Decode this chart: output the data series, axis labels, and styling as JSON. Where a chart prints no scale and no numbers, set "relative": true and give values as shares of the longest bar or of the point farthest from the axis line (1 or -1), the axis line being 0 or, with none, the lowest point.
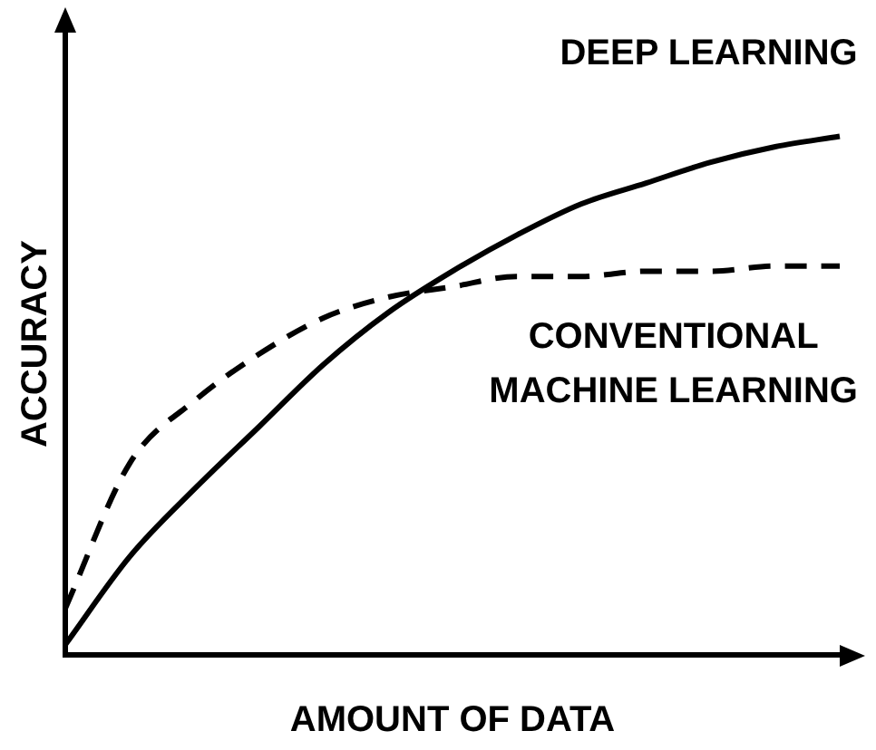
{
  "chart_data": {
    "type": "line",
    "relative": true,
    "xlabel": "AMOUNT OF DATA",
    "ylabel": "ACCURACY",
    "categories": [
      null,
      null,
      null,
      null,
      null,
      null,
      null,
      null,
      null,
      null,
      null,
      null,
      null
    ],
    "series": [
      {
        "name": "DEEP LEARNING",
        "color": "#000000",
        "line_style": "solid",
        "values": [
          0.02,
          0.19,
          0.32,
          0.44,
          0.56,
          0.66,
          0.74,
          0.81,
          0.87,
          0.91,
          0.95,
          0.98,
          1.0
        ]
      },
      {
        "name": "CONVENTIONAL MACHINE LEARNING",
        "color": "#000000",
        "line_style": "dashed",
        "values": [
          0.09,
          0.37,
          0.49,
          0.58,
          0.65,
          0.69,
          0.71,
          0.73,
          0.73,
          0.74,
          0.74,
          0.75,
          0.75
        ]
      }
    ],
    "grid": false,
    "legend": false,
    "marker": "none"
  }
}
